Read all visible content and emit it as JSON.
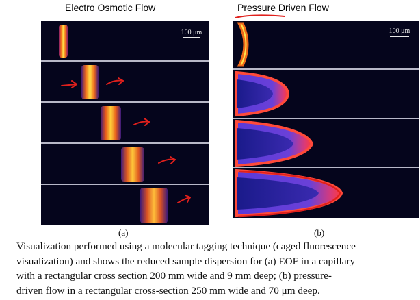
{
  "labels": {
    "left_title": "Electro Osmotic Flow",
    "right_title": "Pressure Driven Flow",
    "scale_left": "100 μm",
    "scale_right": "100 μm",
    "sub_a": "(a)",
    "sub_b": "(b)"
  },
  "caption": {
    "lines": [
      "Visualization performed using a molecular tagging technique (caged fluorescence",
      "visualization) and shows the reduced sample dispersion for (a) EOF in a capillary",
      "with a rectangular cross section 200 mm wide and 9 mm deep;  (b) pressure-",
      "driven flow in a rectangular cross-section 250 mm wide and 70 μm deep."
    ]
  },
  "colors": {
    "annotation_red": "#e0201c",
    "frame_bg": "#05051c",
    "plug_hot": "#ffe24a",
    "plug_mid": "#f06a1a",
    "plug_edge": "#8a1e6a"
  }
}
